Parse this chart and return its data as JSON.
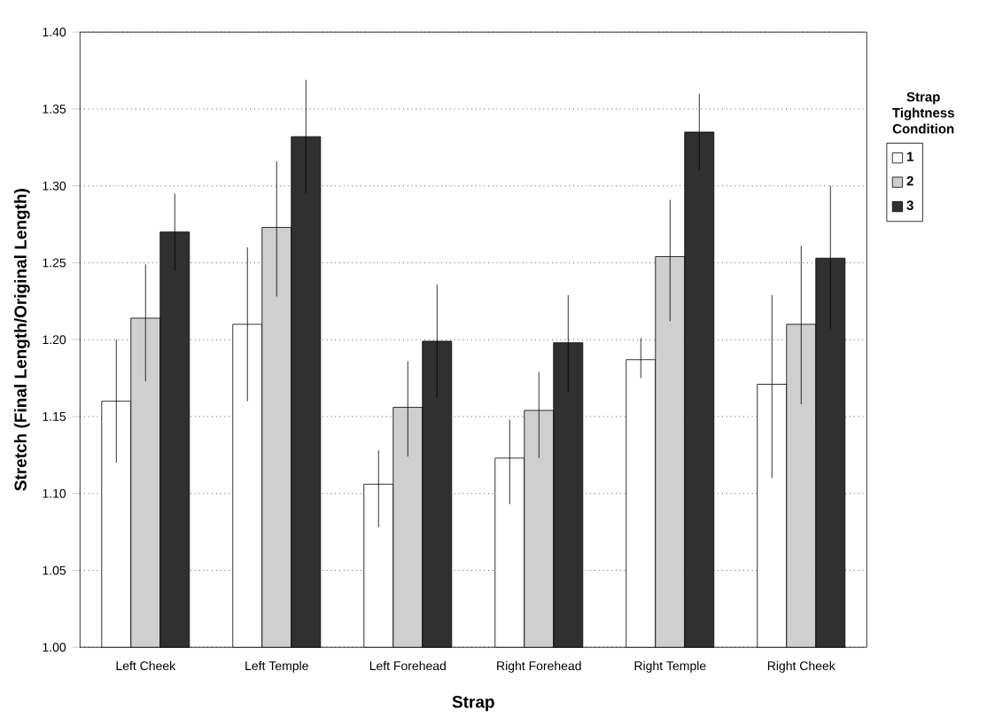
{
  "chart_data": {
    "type": "bar",
    "xlabel": "Strap",
    "ylabel": "Stretch (Final Length/Original Length)",
    "legend_title": "Strap Tightness Condition",
    "categories": [
      "Left Cheek",
      "Left Temple",
      "Left Forehead",
      "Right Forehead",
      "Right Temple",
      "Right Cheek"
    ],
    "series": [
      {
        "name": "1",
        "color": "#ffffff",
        "values": [
          1.16,
          1.21,
          1.106,
          1.123,
          1.187,
          1.171
        ],
        "errors": [
          [
            1.12,
            1.2
          ],
          [
            1.16,
            1.26
          ],
          [
            1.078,
            1.128
          ],
          [
            1.093,
            1.148
          ],
          [
            1.175,
            1.201
          ],
          [
            1.11,
            1.229
          ]
        ]
      },
      {
        "name": "2",
        "color": "#cfcfcf",
        "values": [
          1.214,
          1.273,
          1.156,
          1.154,
          1.254,
          1.21
        ],
        "errors": [
          [
            1.173,
            1.249
          ],
          [
            1.228,
            1.316
          ],
          [
            1.124,
            1.186
          ],
          [
            1.123,
            1.179
          ],
          [
            1.212,
            1.291
          ],
          [
            1.158,
            1.261
          ]
        ]
      },
      {
        "name": "3",
        "color": "#303030",
        "values": [
          1.27,
          1.332,
          1.199,
          1.198,
          1.335,
          1.253
        ],
        "errors": [
          [
            1.245,
            1.295
          ],
          [
            1.295,
            1.369
          ],
          [
            1.162,
            1.236
          ],
          [
            1.166,
            1.229
          ],
          [
            1.31,
            1.36
          ],
          [
            1.207,
            1.3
          ]
        ]
      }
    ],
    "ylim": [
      1.0,
      1.4
    ],
    "yticks": [
      {
        "value": 1.0,
        "label": "1.00"
      },
      {
        "value": 1.05,
        "label": "1.05"
      },
      {
        "value": 1.1,
        "label": "1.10"
      },
      {
        "value": 1.15,
        "label": "1.15"
      },
      {
        "value": 1.2,
        "label": "1.20"
      },
      {
        "value": 1.25,
        "label": "1.25"
      },
      {
        "value": 1.3,
        "label": "1.30"
      },
      {
        "value": 1.35,
        "label": "1.35"
      },
      {
        "value": 1.4,
        "label": "1.40"
      }
    ],
    "grid": "y",
    "legend": "right"
  }
}
